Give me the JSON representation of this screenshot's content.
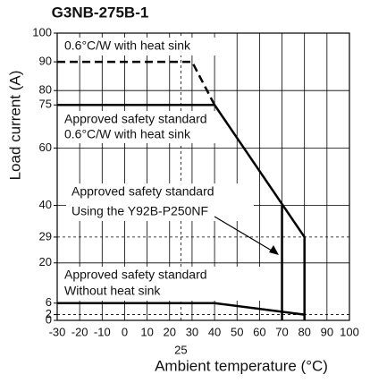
{
  "chart_data": {
    "type": "line",
    "title": "G3NB-275B-1",
    "xlabel": "Ambient temperature (°C)",
    "ylabel": "Load current (A)",
    "xlim": [
      -30,
      100
    ],
    "ylim": [
      0,
      100
    ],
    "xticks": [
      -30,
      -20,
      -10,
      0,
      10,
      20,
      25,
      30,
      40,
      50,
      60,
      70,
      80,
      90,
      100
    ],
    "yticks": [
      0,
      2,
      6,
      20,
      29,
      40,
      60,
      75,
      80,
      90,
      100
    ],
    "grid": true,
    "ygrid": [
      20,
      40,
      60,
      80
    ],
    "ref_lines": [
      {
        "axis": "x",
        "value": 25
      },
      {
        "axis": "y",
        "value": 29
      },
      {
        "axis": "y",
        "value": 2
      }
    ],
    "series": [
      {
        "name": "0.6°C/W with heat sink",
        "color": "#000000",
        "dashed": true,
        "x": [
          -30,
          30,
          40
        ],
        "values": [
          90,
          90,
          75
        ]
      },
      {
        "name": "Approved safety standard 0.6°C/W with heat sink",
        "color": "#000000",
        "dashed": false,
        "x": [
          -30,
          40,
          80,
          80
        ],
        "values": [
          75,
          75,
          29,
          0
        ]
      },
      {
        "name": "Approved safety standard Using the Y92B-P250NF",
        "color": "#000000",
        "dashed": false,
        "x": [
          70,
          70
        ],
        "values": [
          40,
          0
        ]
      },
      {
        "name": "Approved safety standard Without heat sink",
        "color": "#000000",
        "dashed": false,
        "x": [
          -30,
          40,
          80
        ],
        "values": [
          6,
          6,
          2
        ]
      }
    ],
    "annotations": [
      [
        "0.6°C/W with heat sink"
      ],
      [
        "Approved safety standard",
        "0.6°C/W  with heat sink"
      ],
      [
        "Approved safety standard",
        "Using the Y92B-P250NF"
      ],
      [
        "Approved safety standard",
        "Without heat sink"
      ]
    ]
  }
}
